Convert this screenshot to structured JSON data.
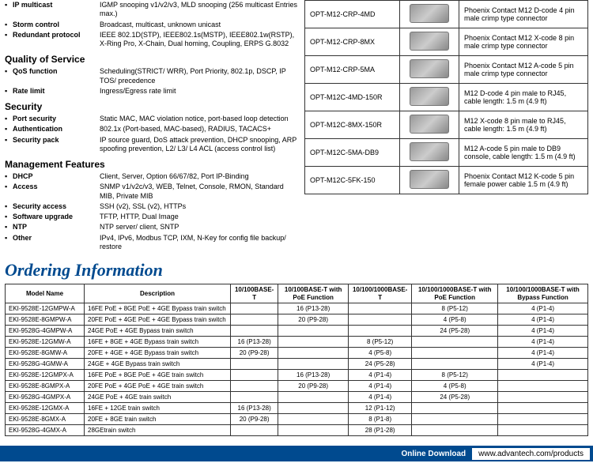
{
  "connectors": [
    {
      "part": "OPT-M12-CRP-4MD",
      "desc": "Phoenix Contact M12 D-code 4 pin male crimp type connector"
    },
    {
      "part": "OPT-M12-CRP-8MX",
      "desc": "Phoenix Contact M12 X-code 8 pin male crimp type connector"
    },
    {
      "part": "OPT-M12-CRP-5MA",
      "desc": "Phoenix Contact M12 A-code 5 pin male crimp type connector"
    },
    {
      "part": "OPT-M12C-4MD-150R",
      "desc": "M12 D-code 4 pin male to RJ45, cable length: 1.5 m (4.9 ft)"
    },
    {
      "part": "OPT-M12C-8MX-150R",
      "desc": "M12 X-code 8 pin male to RJ45, cable length: 1.5 m (4.9 ft)"
    },
    {
      "part": "OPT-M12C-5MA-DB9",
      "desc": "M12 A-code 5 pin male to DB9 console, cable length: 1.5 m (4.9 ft)"
    },
    {
      "part": "OPT-M12C-5FK-150",
      "desc": "Phoenix Contact M12 K-code 5 pin female power cable 1.5 m (4.9 ft)"
    }
  ],
  "spec_groups": [
    {
      "heading": null,
      "rows": [
        {
          "label": "IP multicast",
          "value": "IGMP snooping v1/v2/v3, MLD snooping (256 multicast Entries max.)"
        },
        {
          "label": "Storm control",
          "value": "Broadcast, multicast, unknown unicast"
        },
        {
          "label": "Redundant protocol",
          "value": "IEEE 802.1D(STP), IEEE802.1s(MSTP), IEEE802.1w(RSTP), X-Ring Pro, X-Chain, Dual homing, Coupling, ERPS G.8032"
        }
      ]
    },
    {
      "heading": "Quality of Service",
      "rows": [
        {
          "label": "QoS function",
          "value": "Scheduling(STRICT/ WRR), Port Priority, 802.1p, DSCP, IP TOS/ precedence"
        },
        {
          "label": "Rate limit",
          "value": "Ingress/Egress rate limit"
        }
      ]
    },
    {
      "heading": "Security",
      "rows": [
        {
          "label": "Port security",
          "value": "Static MAC, MAC violation notice, port-based loop detection"
        },
        {
          "label": "Authentication",
          "value": "802.1x (Port-based, MAC-based), RADIUS, TACACS+"
        },
        {
          "label": "Security pack",
          "value": "IP source guard, DoS attack prevention, DHCP snooping, ARP spoofing prevention, L2/ L3/ L4 ACL (access control list)"
        }
      ]
    },
    {
      "heading": "Management Features",
      "rows": [
        {
          "label": "DHCP",
          "value": "Client, Server, Option 66/67/82, Port IP-Binding"
        },
        {
          "label": "Access",
          "value": "SNMP v1/v2c/v3, WEB, Telnet, Console, RMON, Standard MIB, Private MIB"
        },
        {
          "label": "Security access",
          "value": "SSH (v2), SSL (v2), HTTPs"
        },
        {
          "label": "Software upgrade",
          "value": "TFTP, HTTP, Dual Image"
        },
        {
          "label": "NTP",
          "value": "NTP server/ client, SNTP"
        },
        {
          "label": "Other",
          "value": "IPv4, IPv6, Modbus TCP, IXM, N-Key for config file backup/ restore"
        }
      ]
    }
  ],
  "ordering_title": "Ordering Information",
  "table_headers": {
    "model": "Model Name",
    "desc": "Description",
    "c1": "10/100BASE-T",
    "c2": "10/100BASE-T with PoE Function",
    "c3": "10/100/1000BASE-T",
    "c4": "10/100/1000BASE-T with PoE Function",
    "c5": "10/100/1000BASE-T with Bypass Function"
  },
  "ordering_rows": [
    {
      "m": "EKI-9528E-12GMPW-A",
      "d": "16FE PoE + 8GE PoE + 4GE Bypass train switch",
      "c1": "",
      "c2": "16 (P13-28)",
      "c3": "",
      "c4": "8 (P5-12)",
      "c5": "4 (P1-4)"
    },
    {
      "m": "EKI-9528E-8GMPW-A",
      "d": "20FE PoE + 4GE PoE + 4GE Bypass train switch",
      "c1": "",
      "c2": "20 (P9-28)",
      "c3": "",
      "c4": "4 (P5-8)",
      "c5": "4 (P1-4)"
    },
    {
      "m": "EKI-9528G-4GMPW-A",
      "d": "24GE PoE + 4GE Bypass train switch",
      "c1": "",
      "c2": "",
      "c3": "",
      "c4": "24 (P5-28)",
      "c5": "4 (P1-4)"
    },
    {
      "m": "EKI-9528E-12GMW-A",
      "d": "16FE + 8GE + 4GE Bypass train switch",
      "c1": "16 (P13-28)",
      "c2": "",
      "c3": "8 (P5-12)",
      "c4": "",
      "c5": "4 (P1-4)"
    },
    {
      "m": "EKI-9528E-8GMW-A",
      "d": "20FE + 4GE + 4GE Bypass train switch",
      "c1": "20 (P9-28)",
      "c2": "",
      "c3": "4 (P5-8)",
      "c4": "",
      "c5": "4 (P1-4)"
    },
    {
      "m": "EKI-9528G-4GMW-A",
      "d": "24GE + 4GE Bypass train switch",
      "c1": "",
      "c2": "",
      "c3": "24 (P5-28)",
      "c4": "",
      "c5": "4 (P1-4)"
    },
    {
      "m": "EKI-9528E-12GMPX-A",
      "d": "16FE PoE + 8GE PoE + 4GE train switch",
      "c1": "",
      "c2": "16 (P13-28)",
      "c3": "4 (P1-4)",
      "c4": "8 (P5-12)",
      "c5": ""
    },
    {
      "m": "EKI-9528E-8GMPX-A",
      "d": "20FE PoE + 4GE PoE + 4GE train switch",
      "c1": "",
      "c2": "20 (P9-28)",
      "c3": "4 (P1-4)",
      "c4": "4 (P5-8)",
      "c5": ""
    },
    {
      "m": "EKI-9528G-4GMPX-A",
      "d": "24GE PoE + 4GE train switch",
      "c1": "",
      "c2": "",
      "c3": "4 (P1-4)",
      "c4": "24 (P5-28)",
      "c5": ""
    },
    {
      "m": "EKI-9528E-12GMX-A",
      "d": "16FE + 12GE train switch",
      "c1": "16 (P13-28)",
      "c2": "",
      "c3": "12 (P1-12)",
      "c4": "",
      "c5": ""
    },
    {
      "m": "EKI-9528E-8GMX-A",
      "d": "20FE + 8GE train switch",
      "c1": "20 (P9-28)",
      "c2": "",
      "c3": "8 (P1-8)",
      "c4": "",
      "c5": ""
    },
    {
      "m": "EKI-9528G-4GMX-A",
      "d": "28GEtrain switch",
      "c1": "",
      "c2": "",
      "c3": "28 (P1-28)",
      "c4": "",
      "c5": ""
    }
  ],
  "footer": {
    "download": "Online Download",
    "url": "www.advantech.com/products"
  }
}
